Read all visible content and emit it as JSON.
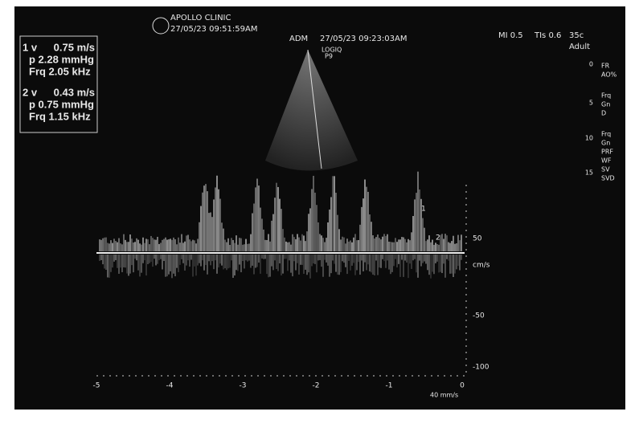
{
  "header": {
    "clinic": "APOLLO CLINIC",
    "datetime": "27/05/23 09:51:59AM",
    "operator": "ADM",
    "exam_datetime": "27/05/23 09:23:03AM",
    "system": "LOGIQ",
    "probe": "P9",
    "mi": "MI 0.5",
    "tis": "TIs 0.6",
    "frame": "35c",
    "preset": "Adult"
  },
  "measurements": [
    {
      "id": "1 v",
      "velocity": "0.75 m/s",
      "pressure": "p 2.28 mmHg",
      "frequency": "Frq 2.05 kHz"
    },
    {
      "id": "2 v",
      "velocity": "0.43 m/s",
      "pressure": "p 0.75 mmHg",
      "frequency": "Frq 1.15 kHz"
    }
  ],
  "side_panel": {
    "depth_marks": [
      "0",
      "5",
      "10",
      "15"
    ],
    "labels": [
      "FR",
      "AO%",
      "Frq",
      "Gn",
      "D",
      "Frq",
      "Gn",
      "PRF",
      "WF",
      "SV",
      "SVD"
    ]
  },
  "doppler": {
    "velocity_labels": [
      "50",
      "cm/s",
      "-50",
      "-100"
    ],
    "time_labels": [
      "-5",
      "-4",
      "-3",
      "-2",
      "-1",
      "0"
    ],
    "sweep": "40 mm/s",
    "markers": [
      "1",
      "2"
    ]
  }
}
